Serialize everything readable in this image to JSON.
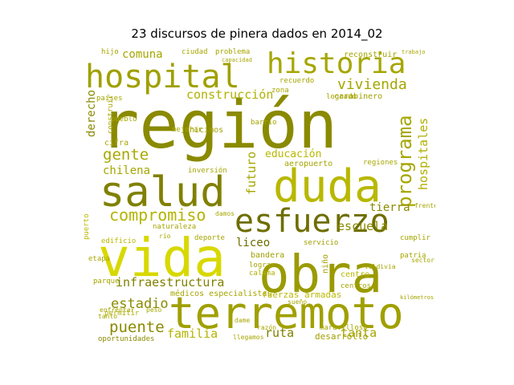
{
  "title": "23 discursos de pinera dados en 2014_02",
  "colors": [
    "#808000",
    "#9a9a00",
    "#b8b800",
    "#cccc00",
    "#d8d800",
    "#6e6e00",
    "#a6a600"
  ],
  "words": [
    "región",
    "hospital",
    "historia",
    "salud",
    "duda",
    "vida",
    "obra",
    "terremoto",
    "esfuerzo",
    "compromiso",
    "programa",
    "vivienda",
    "construcción",
    "gente",
    "chilena",
    "puente",
    "estadio",
    "infraestructura",
    "familia",
    "tanta",
    "ruta",
    "escuela",
    "liceo",
    "educación",
    "tierra",
    "futuro",
    "derecho",
    "comuna",
    "hospitales",
    "médicos especialistas",
    "fuerzas armadas",
    "inversión",
    "aeropuerto",
    "servicio",
    "bandera",
    "lograr",
    "calama",
    "niño",
    "centro",
    "centros",
    "maravilloso",
    "desarrollo",
    "oportunidades",
    "permitir",
    "cifra",
    "edificio",
    "naturaleza",
    "deporte",
    "puerto",
    "parque",
    "etapa",
    "hicimos",
    "mejorar",
    "barrio",
    "reconstruir",
    "carabinero",
    "recuerdo",
    "zona",
    "ciudad",
    "problema",
    "capacidad",
    "hijo",
    "países",
    "pueblo",
    "construir",
    "regiones",
    "logrado",
    "damos",
    "valdivia",
    "patria",
    "sector",
    "cumplir",
    "trabajo",
    "razón",
    "llegamos",
    "dame",
    "tanto",
    "peso",
    "enfrentar",
    "frente",
    "río",
    "kilómetros",
    "sueño"
  ]
}
